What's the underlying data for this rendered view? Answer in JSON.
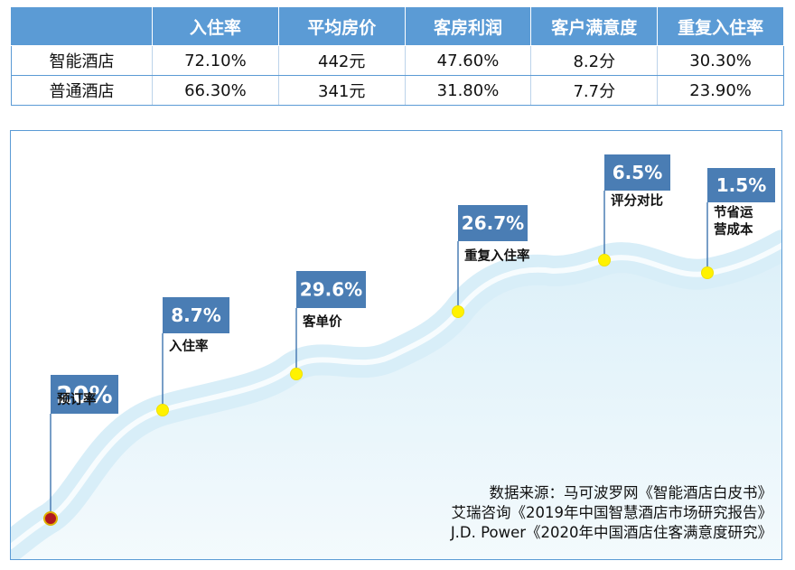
{
  "table": {
    "headers": [
      "",
      "入住率",
      "平均房价",
      "客房利润",
      "客户满意度",
      "重复入住率"
    ],
    "rows": [
      [
        "智能酒店",
        "72.10%",
        "442元",
        "47.60%",
        "8.2分",
        "30.30%"
      ],
      [
        "普通酒店",
        "66.30%",
        "341元",
        "31.80%",
        "7.7分",
        "23.90%"
      ]
    ]
  },
  "chart_data": {
    "type": "infographic-milestones",
    "milestones": [
      {
        "value": "20%",
        "label": [
          "预订率"
        ]
      },
      {
        "value": "8.7%",
        "label": [
          "入住率"
        ]
      },
      {
        "value": "29.6%",
        "label": [
          "客单价"
        ]
      },
      {
        "value": "26.7%",
        "label": [
          "重复入住率"
        ]
      },
      {
        "value": "6.5%",
        "label": [
          "评分对比"
        ]
      },
      {
        "value": "1.5%",
        "label": [
          "节省运",
          "营成本"
        ]
      }
    ],
    "source_lines": [
      "数据来源：马可波罗网《智能酒店白皮书》",
      "艾瑞咨询《2019年中国智慧酒店市场研究报告》",
      "J.D. Power《2020年中国酒店住客满意度研究》"
    ]
  },
  "colors": {
    "header_bg": "#5b9bd5",
    "tag_bg": "#4a7db4",
    "dot": "#fff200",
    "start_dot": "#b01820",
    "river": "#cfe9f5"
  }
}
